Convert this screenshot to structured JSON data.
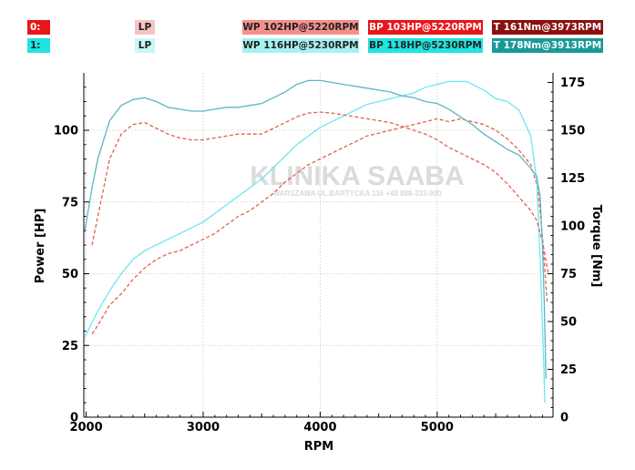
{
  "legend": {
    "run0": {
      "id": "0:",
      "id_color": "#e8161b",
      "lp": "LP",
      "lp_color": "#f6c4c4",
      "wp": "WP 102HP@5220RPM",
      "wp_color": "#f4908c",
      "bp": "BP 103HP@5220RPM",
      "bp_color": "#e8161b",
      "t": "T 161Nm@3973RPM",
      "t_color": "#8b1010"
    },
    "run1": {
      "id": "1:",
      "id_color": "#20e4e0",
      "lp": "LP",
      "lp_color": "#c6f8f6",
      "wp": "WP 116HP@5230RPM",
      "wp_color": "#a6f2f0",
      "bp": "BP 118HP@5230RPM",
      "bp_color": "#20e4e0",
      "t": "T 178Nm@3913RPM",
      "t_color": "#1a9a96"
    }
  },
  "watermark": {
    "title": "KLINIKA SAABA",
    "subtitle": "WARSZAWA UL.BARTYCKA 116 +48 888-333-990"
  },
  "chart_data": {
    "type": "line",
    "xlabel": "RPM",
    "ylabel": "Power [HP]",
    "y2label": "Torque [Nm]",
    "xlim": [
      1980,
      5990
    ],
    "ylim": [
      0,
      120
    ],
    "y2lim": [
      0,
      180
    ],
    "xticks": [
      2000,
      3000,
      4000,
      5000
    ],
    "yticks": [
      0,
      25,
      50,
      75,
      100
    ],
    "y2ticks": [
      0,
      25,
      50,
      75,
      100,
      125,
      150,
      175
    ],
    "grid": true,
    "series": [
      {
        "name": "BP 103HP@5220RPM",
        "axis": "power",
        "color": "#e0614f",
        "dashed": true,
        "points": [
          [
            2050,
            29
          ],
          [
            2100,
            32
          ],
          [
            2200,
            39
          ],
          [
            2300,
            43
          ],
          [
            2400,
            48
          ],
          [
            2500,
            52
          ],
          [
            2600,
            55
          ],
          [
            2700,
            57
          ],
          [
            2800,
            58
          ],
          [
            2900,
            60
          ],
          [
            3000,
            62
          ],
          [
            3100,
            64
          ],
          [
            3200,
            67
          ],
          [
            3300,
            70
          ],
          [
            3400,
            72
          ],
          [
            3500,
            75
          ],
          [
            3600,
            78
          ],
          [
            3700,
            82
          ],
          [
            3800,
            85
          ],
          [
            3900,
            88
          ],
          [
            4000,
            90
          ],
          [
            4100,
            92
          ],
          [
            4200,
            94
          ],
          [
            4300,
            96
          ],
          [
            4400,
            98
          ],
          [
            4500,
            99
          ],
          [
            4600,
            100
          ],
          [
            4700,
            101
          ],
          [
            4800,
            102
          ],
          [
            4900,
            103
          ],
          [
            5000,
            104
          ],
          [
            5100,
            103
          ],
          [
            5200,
            104
          ],
          [
            5300,
            103
          ],
          [
            5400,
            102
          ],
          [
            5500,
            100
          ],
          [
            5600,
            97
          ],
          [
            5700,
            93
          ],
          [
            5800,
            88
          ],
          [
            5860,
            80
          ],
          [
            5900,
            63
          ],
          [
            5940,
            40
          ]
        ]
      },
      {
        "name": "BP 118HP@5230RPM",
        "axis": "power",
        "color": "#6ce8ee",
        "dashed": false,
        "points": [
          [
            1990,
            28
          ],
          [
            2050,
            33
          ],
          [
            2100,
            37
          ],
          [
            2200,
            44
          ],
          [
            2300,
            50
          ],
          [
            2400,
            55
          ],
          [
            2500,
            58
          ],
          [
            2600,
            60
          ],
          [
            2700,
            62
          ],
          [
            2800,
            64
          ],
          [
            2900,
            66
          ],
          [
            3000,
            68
          ],
          [
            3100,
            71
          ],
          [
            3200,
            74
          ],
          [
            3300,
            77
          ],
          [
            3400,
            80
          ],
          [
            3500,
            83
          ],
          [
            3600,
            87
          ],
          [
            3700,
            91
          ],
          [
            3800,
            95
          ],
          [
            3900,
            98
          ],
          [
            4000,
            101
          ],
          [
            4100,
            103
          ],
          [
            4200,
            105
          ],
          [
            4300,
            107
          ],
          [
            4400,
            109
          ],
          [
            4500,
            110
          ],
          [
            4600,
            111
          ],
          [
            4700,
            112
          ],
          [
            4800,
            113
          ],
          [
            4900,
            115
          ],
          [
            5000,
            116
          ],
          [
            5100,
            117
          ],
          [
            5200,
            117
          ],
          [
            5250,
            117
          ],
          [
            5300,
            116
          ],
          [
            5400,
            114
          ],
          [
            5500,
            111
          ],
          [
            5600,
            110
          ],
          [
            5700,
            107
          ],
          [
            5800,
            98
          ],
          [
            5850,
            83
          ],
          [
            5880,
            55
          ],
          [
            5910,
            20
          ],
          [
            5920,
            5
          ]
        ]
      },
      {
        "name": "T 161Nm@3973RPM",
        "axis": "torque",
        "color": "#e0614f",
        "dashed": true,
        "points": [
          [
            2050,
            90
          ],
          [
            2100,
            105
          ],
          [
            2200,
            135
          ],
          [
            2300,
            148
          ],
          [
            2400,
            153
          ],
          [
            2500,
            154
          ],
          [
            2600,
            151
          ],
          [
            2700,
            148
          ],
          [
            2800,
            146
          ],
          [
            2900,
            145
          ],
          [
            3000,
            145
          ],
          [
            3100,
            146
          ],
          [
            3200,
            147
          ],
          [
            3300,
            148
          ],
          [
            3400,
            148
          ],
          [
            3500,
            148
          ],
          [
            3600,
            151
          ],
          [
            3700,
            154
          ],
          [
            3800,
            157
          ],
          [
            3900,
            159
          ],
          [
            4000,
            159.5
          ],
          [
            4100,
            159
          ],
          [
            4200,
            158
          ],
          [
            4300,
            157
          ],
          [
            4400,
            156
          ],
          [
            4500,
            155
          ],
          [
            4600,
            154
          ],
          [
            4700,
            152
          ],
          [
            4800,
            150
          ],
          [
            4900,
            148
          ],
          [
            5000,
            145
          ],
          [
            5100,
            141
          ],
          [
            5200,
            138
          ],
          [
            5300,
            135
          ],
          [
            5400,
            132
          ],
          [
            5500,
            128
          ],
          [
            5600,
            122
          ],
          [
            5700,
            115
          ],
          [
            5800,
            108
          ],
          [
            5850,
            103
          ],
          [
            5900,
            92
          ],
          [
            5950,
            75
          ]
        ]
      },
      {
        "name": "T 178Nm@3913RPM",
        "axis": "torque",
        "color": "#5eb5c0",
        "dashed": false,
        "points": [
          [
            1990,
            98
          ],
          [
            2050,
            120
          ],
          [
            2100,
            135
          ],
          [
            2200,
            155
          ],
          [
            2300,
            163
          ],
          [
            2400,
            166
          ],
          [
            2500,
            167
          ],
          [
            2600,
            165
          ],
          [
            2700,
            162
          ],
          [
            2800,
            161
          ],
          [
            2900,
            160
          ],
          [
            3000,
            160
          ],
          [
            3100,
            161
          ],
          [
            3200,
            162
          ],
          [
            3300,
            162
          ],
          [
            3400,
            163
          ],
          [
            3500,
            164
          ],
          [
            3600,
            167
          ],
          [
            3700,
            170
          ],
          [
            3800,
            174
          ],
          [
            3900,
            176
          ],
          [
            4000,
            176
          ],
          [
            4100,
            175
          ],
          [
            4200,
            174
          ],
          [
            4300,
            173
          ],
          [
            4400,
            172
          ],
          [
            4500,
            171
          ],
          [
            4600,
            170
          ],
          [
            4700,
            168
          ],
          [
            4800,
            167
          ],
          [
            4900,
            165
          ],
          [
            5000,
            164
          ],
          [
            5100,
            161
          ],
          [
            5200,
            157
          ],
          [
            5300,
            153
          ],
          [
            5400,
            148
          ],
          [
            5500,
            144
          ],
          [
            5600,
            140
          ],
          [
            5700,
            137
          ],
          [
            5800,
            130
          ],
          [
            5850,
            126
          ],
          [
            5880,
            115
          ],
          [
            5900,
            90
          ],
          [
            5915,
            60
          ],
          [
            5930,
            20
          ]
        ]
      }
    ]
  }
}
